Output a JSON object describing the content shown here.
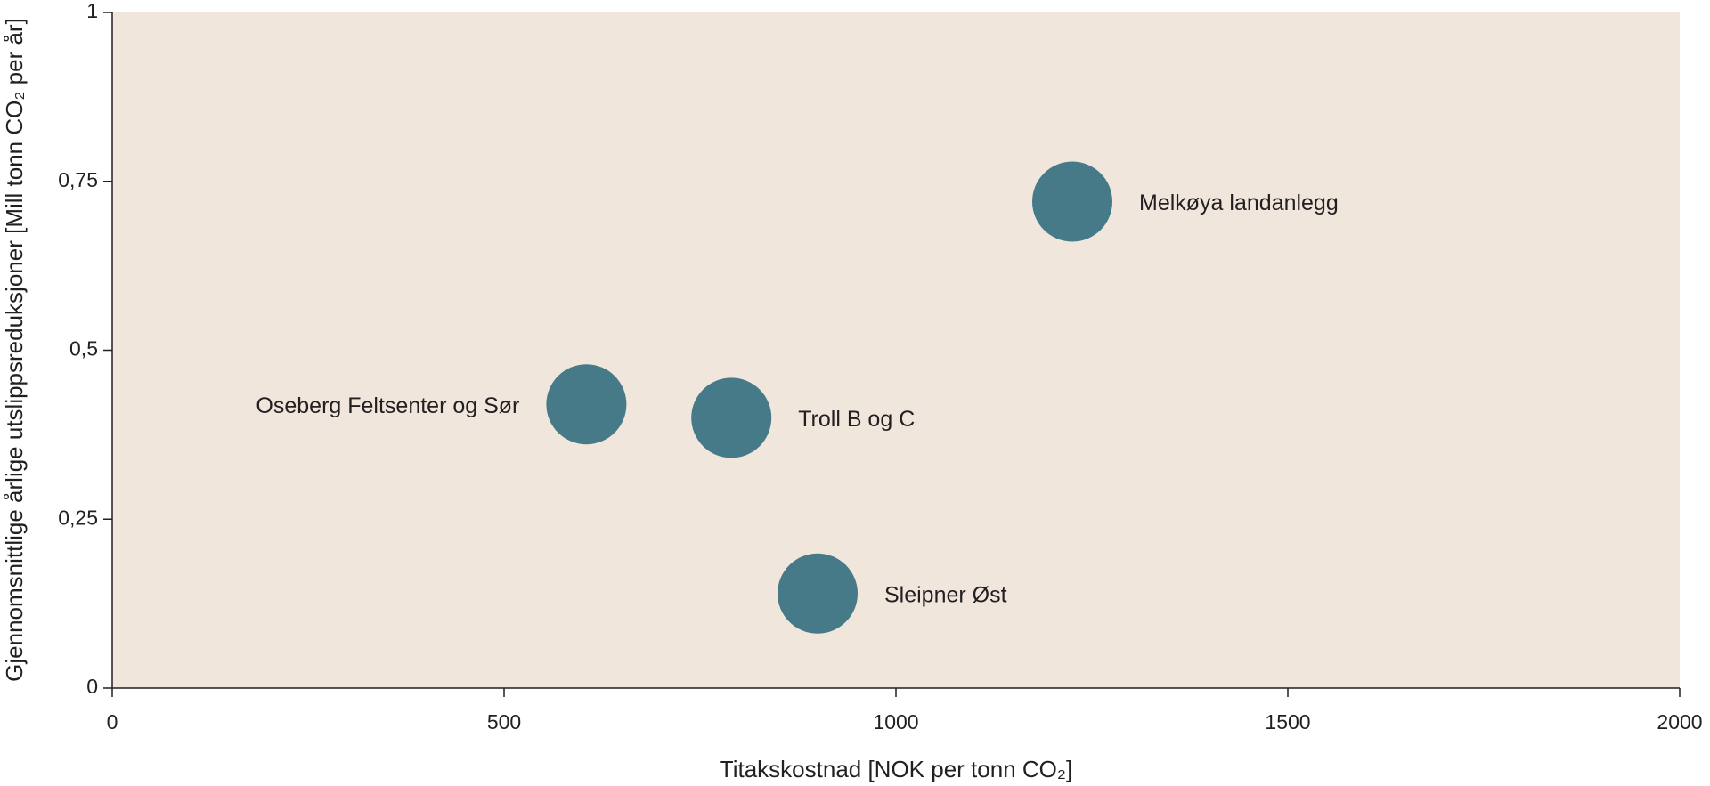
{
  "chart_data": {
    "type": "scatter",
    "xlabel": "Titakskostnad [NOK per tonn CO₂]",
    "ylabel": "Gjennomsnittlige  årlige utslippsreduksjoner [Mill tonn CO₂ per år]",
    "labels": [
      "Melkøya landanlegg",
      "Oseberg Feltsenter og Sør",
      "Troll B og C",
      "Sleipner Øst"
    ],
    "x": [
      1225,
      605,
      790,
      900
    ],
    "values": [
      0.72,
      0.42,
      0.4,
      0.14
    ],
    "color": "#467a89",
    "background": "#f0e6dc",
    "xlim": [
      0,
      2000
    ],
    "xticks": [
      0,
      500,
      1000,
      1500,
      2000
    ],
    "ylim": [
      0,
      1
    ],
    "yticks": [
      0,
      {
        "value": 0.25,
        "label": "0,25"
      },
      {
        "value": 0.5,
        "label": "0,5"
      },
      {
        "value": 0.75,
        "label": "0,75"
      },
      1
    ]
  }
}
